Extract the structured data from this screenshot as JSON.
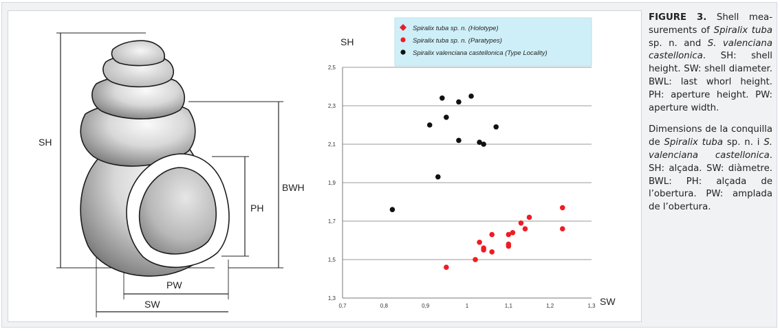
{
  "diagram": {
    "labels": {
      "sh": "SH",
      "bwh": "BWH",
      "ph": "PH",
      "pw": "PW",
      "sw": "SW"
    }
  },
  "chart_data": {
    "type": "scatter",
    "xlabel": "SW",
    "ylabel": "SH",
    "xlim": [
      0.7,
      1.3
    ],
    "ylim": [
      1.3,
      2.5
    ],
    "xticks": [
      "0,7",
      "0,8",
      "0,9",
      "1",
      "1,1",
      "1,2",
      "1,3"
    ],
    "yticks": [
      "1,3",
      "1,5",
      "1,7",
      "1,9",
      "2,1",
      "2,3",
      "2,5"
    ],
    "grid": "horizontal",
    "legend_position": "top",
    "series": [
      {
        "name": "Spiralix tuba sp. n. (Holotype)",
        "marker": "diamond",
        "color": "#ee1c24",
        "points": []
      },
      {
        "name": "Spiralix tuba sp. n. (Paratypes)",
        "marker": "circle",
        "color": "#ee1c24",
        "points": [
          [
            0.95,
            1.46
          ],
          [
            1.02,
            1.5
          ],
          [
            1.03,
            1.59
          ],
          [
            1.04,
            1.55
          ],
          [
            1.04,
            1.56
          ],
          [
            1.06,
            1.54
          ],
          [
            1.06,
            1.63
          ],
          [
            1.1,
            1.57
          ],
          [
            1.1,
            1.58
          ],
          [
            1.1,
            1.63
          ],
          [
            1.11,
            1.64
          ],
          [
            1.13,
            1.69
          ],
          [
            1.14,
            1.66
          ],
          [
            1.15,
            1.72
          ],
          [
            1.23,
            1.66
          ],
          [
            1.23,
            1.77
          ]
        ]
      },
      {
        "name": "Spiralix valenciana castellonica (Type Locality)",
        "marker": "circle",
        "color": "#111111",
        "points": [
          [
            0.82,
            1.76
          ],
          [
            0.91,
            2.2
          ],
          [
            0.93,
            1.93
          ],
          [
            0.94,
            2.34
          ],
          [
            0.95,
            2.24
          ],
          [
            0.98,
            2.32
          ],
          [
            0.98,
            2.12
          ],
          [
            1.01,
            2.35
          ],
          [
            1.03,
            2.11
          ],
          [
            1.04,
            2.1
          ],
          [
            1.07,
            2.19
          ]
        ]
      }
    ]
  },
  "caption": {
    "en_title": "FIGURE 3.",
    "en_1": " Shell mea­surements of ",
    "en_2": "Spiralix tuba",
    "en_3": " sp. n. and ",
    "en_4": "S. valenciana castello­nica",
    "en_5": ". SH: shell height. SW: shell diameter. BWL: last whorl height. PH: aperture height. PW: aperture width.",
    "ca_1": "Dimensions de la conquilla de ",
    "ca_2": "Spiralix tuba",
    "ca_3": " sp. n. i ",
    "ca_4": "S. valen­ciana castellonica",
    "ca_5": ". SH: alçada. SW: diàmetre. BWL: PH: alçada de l’obertura. PW: amplada de l’obertura."
  }
}
